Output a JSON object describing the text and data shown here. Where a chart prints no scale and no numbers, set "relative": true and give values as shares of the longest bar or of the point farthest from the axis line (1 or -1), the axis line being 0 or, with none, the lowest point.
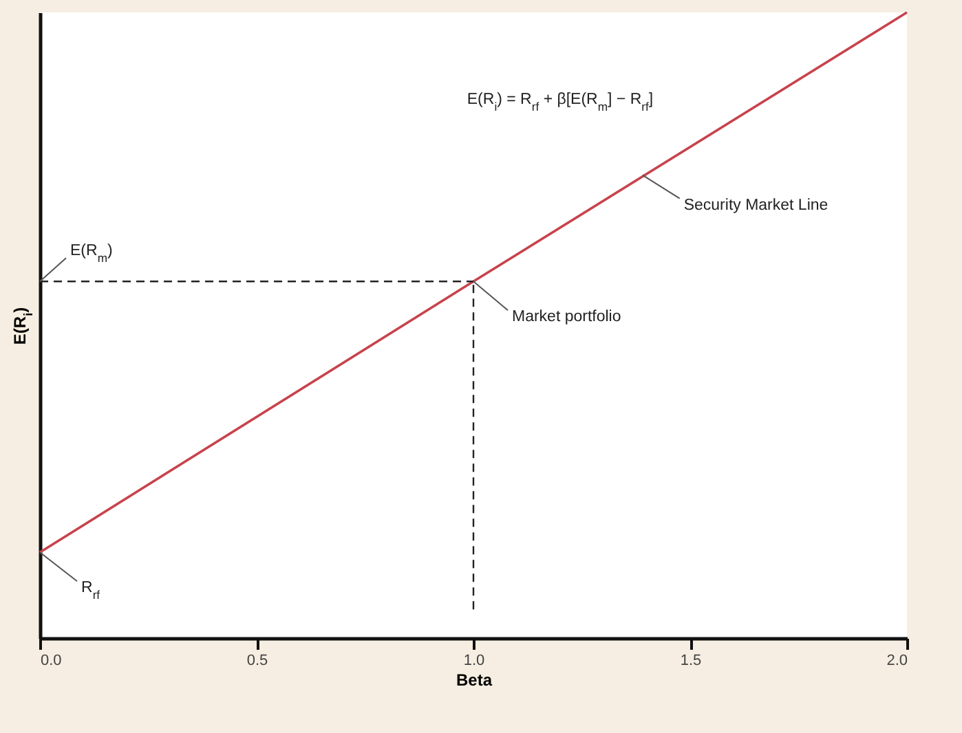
{
  "chart_data": {
    "type": "line",
    "relative": true,
    "xlabel": "Beta",
    "ylabel": "E(R$_{i}$)",
    "xlim": [
      0,
      2
    ],
    "xticks": [
      {
        "value": 0,
        "label": "0.0"
      },
      {
        "value": 0.5,
        "label": "0.5"
      },
      {
        "value": 1,
        "label": "1.0"
      },
      {
        "value": 1.5,
        "label": "1.5"
      },
      {
        "value": 2,
        "label": "2.0"
      }
    ],
    "marker": "none",
    "series": [
      {
        "color": "#c8434c",
        "x": [
          0,
          1,
          2
        ],
        "values": [
          0.137,
          0.57,
          1
        ],
        "line_style": "solid"
      },
      {
        "color": "#222222",
        "x": [
          0,
          1
        ],
        "values": [
          0.57,
          0.57
        ],
        "line_style": "dashed"
      },
      {
        "color": "#222222",
        "x": [
          1,
          1
        ],
        "values": [
          0.046,
          0.57
        ],
        "line_style": "dashed"
      }
    ],
    "annotations": [
      "E(R$_{i}$) = R$_{rf}$ + β[E(R$_{m}$] − R$_{rf}$]",
      {
        "text": "Security Market Line",
        "x": 1.39,
        "y": 0.74
      },
      {
        "text": "E(R$_{m}$)",
        "x": 0,
        "y": 0.57
      },
      {
        "text": "Market portfolio",
        "x": 1,
        "y": 0.57
      },
      {
        "text": "R$_{rf}$",
        "x": 0,
        "y": 0.137
      }
    ]
  }
}
